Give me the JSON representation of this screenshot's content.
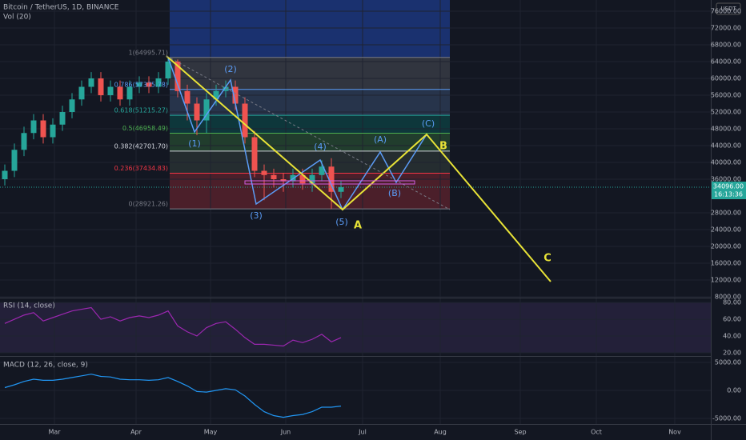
{
  "chart_data": {
    "type": "candlestick",
    "title": "Bitcoin / TetherUS, 1D, BINANCE",
    "volume_label": "Vol (20)",
    "currency": "USDT",
    "open": [
      36000,
      38000,
      43000,
      47000,
      50000,
      46000,
      49000,
      52000,
      55000,
      58000,
      60000,
      56000,
      58000,
      55000,
      58000,
      59000,
      58000,
      60000,
      64000,
      57000,
      54000,
      50000,
      55000,
      57000,
      58000,
      54000,
      46000,
      38000,
      37000,
      36000,
      35500,
      37000,
      35000,
      37000,
      39000,
      33000
    ],
    "high": [
      39500,
      44500,
      48500,
      51500,
      51500,
      50500,
      53500,
      56500,
      59500,
      61500,
      61500,
      59500,
      59500,
      59500,
      60500,
      60500,
      61500,
      64995,
      64500,
      58500,
      55500,
      56500,
      58500,
      59500,
      59500,
      55500,
      47500,
      39500,
      38500,
      37500,
      38500,
      38500,
      38500,
      40500,
      41000,
      35500
    ],
    "low": [
      34500,
      36500,
      41500,
      45500,
      44500,
      44500,
      47500,
      50500,
      53500,
      56500,
      54500,
      54500,
      53500,
      53500,
      56500,
      56500,
      56500,
      58500,
      55500,
      50000,
      46500,
      47000,
      53500,
      55500,
      52500,
      44500,
      36500,
      31000,
      34000,
      33000,
      34000,
      33500,
      33000,
      35500,
      28921,
      31500
    ],
    "close": [
      38000,
      43000,
      47000,
      50000,
      46000,
      49000,
      52000,
      55000,
      58000,
      60000,
      56000,
      58000,
      55000,
      58000,
      59000,
      58000,
      60000,
      64000,
      57000,
      54000,
      50000,
      55000,
      57000,
      58000,
      54000,
      46000,
      38000,
      37000,
      36000,
      35500,
      37000,
      35000,
      37000,
      39000,
      33000,
      34096
    ],
    "up_color": "#26a69a",
    "down_color": "#ef5350",
    "ylim": [
      7810,
      78670
    ],
    "yticks": [
      {
        "value": 76000,
        "label": "76000.00"
      },
      {
        "value": 72000,
        "label": "72000.00"
      },
      {
        "value": 68000,
        "label": "68000.00"
      },
      {
        "value": 64000,
        "label": "64000.00"
      },
      {
        "value": 60000,
        "label": "60000.00"
      },
      {
        "value": 56000,
        "label": "56000.00"
      },
      {
        "value": 52000,
        "label": "52000.00"
      },
      {
        "value": 48000,
        "label": "48000.00"
      },
      {
        "value": 44000,
        "label": "44000.00"
      },
      {
        "value": 40000,
        "label": "40000.00"
      },
      {
        "value": 36000,
        "label": "36000.00"
      },
      {
        "value": 28000,
        "label": "28000.00"
      },
      {
        "value": 24000,
        "label": "24000.00"
      },
      {
        "value": 20000,
        "label": "20000.00"
      },
      {
        "value": 16000,
        "label": "16000.00"
      },
      {
        "value": 12000,
        "label": "12000.00"
      },
      {
        "value": 8000,
        "label": "8000.00"
      }
    ],
    "last_price": {
      "value": 34096,
      "label": "34096.00"
    },
    "countdown": "16:13:36",
    "categories": [
      "Mar",
      "Apr",
      "May",
      "Jun",
      "Jul",
      "Aug",
      "Sep",
      "Oct",
      "Nov"
    ],
    "fib_levels": [
      {
        "value": 64995.71,
        "label": "1(64995.71)"
      },
      {
        "value": 57375.78,
        "label": "0.786(57375.78)"
      },
      {
        "value": 51215.27,
        "label": "0.618(51215.27)"
      },
      {
        "value": 46958.49,
        "label": "0.5(46958.49)"
      },
      {
        "value": 42701.7,
        "label": "0.382(42701.70)"
      },
      {
        "value": 37434.83,
        "label": "0.236(37434.83)"
      },
      {
        "value": 28921.26,
        "label": "0(28921.26)"
      }
    ],
    "wave_labels": [
      "(1)",
      "(2)",
      "(3)",
      "(4)",
      "(5)",
      "(A)",
      "(B)",
      "(C)"
    ],
    "projection_labels": [
      "A",
      "B",
      "C"
    ],
    "rsi": {
      "title": "RSI (14, close)",
      "color": "#9c27b0",
      "values": [
        55,
        60,
        65,
        68,
        58,
        62,
        66,
        70,
        72,
        74,
        60,
        63,
        58,
        62,
        64,
        62,
        65,
        70,
        52,
        45,
        40,
        50,
        55,
        57,
        48,
        38,
        30,
        30,
        29,
        28,
        35,
        32,
        36,
        42,
        33,
        38
      ],
      "ylim": [
        16,
        85
      ],
      "yticks": [
        {
          "value": 80,
          "label": "80.00"
        },
        {
          "value": 60,
          "label": "60.00"
        },
        {
          "value": 40,
          "label": "40.00"
        },
        {
          "value": 20,
          "label": "20.00"
        }
      ]
    },
    "macd": {
      "title": "MACD (12, 26, close, 9)",
      "color": "#2196f3",
      "values": [
        500,
        1000,
        1600,
        2000,
        1800,
        1800,
        2000,
        2300,
        2600,
        2900,
        2500,
        2400,
        2000,
        1900,
        1900,
        1800,
        1900,
        2300,
        1600,
        800,
        -200,
        -300,
        0,
        300,
        100,
        -1000,
        -2500,
        -3800,
        -4500,
        -4800,
        -4500,
        -4300,
        -3800,
        -3000,
        -3000,
        -2800
      ],
      "ylim": [
        -6000,
        6000
      ],
      "yticks": [
        {
          "value": 5000,
          "label": "5000.00"
        },
        {
          "value": 0,
          "label": "0.00"
        },
        {
          "value": -5000,
          "label": "-5000.00"
        }
      ]
    }
  }
}
